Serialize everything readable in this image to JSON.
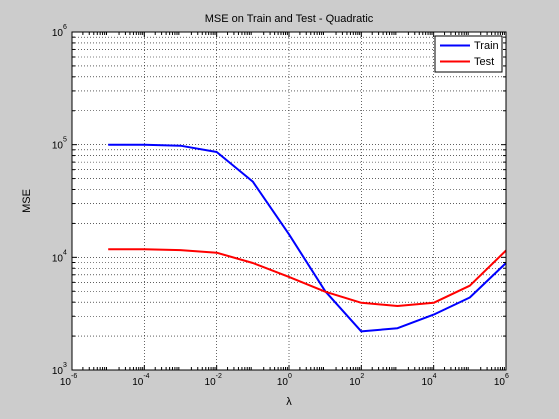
{
  "chart_data": {
    "type": "line",
    "title": "MSE on Train and Test - Quadratic",
    "xlabel": "λ",
    "ylabel": "MSE",
    "xscale": "log",
    "yscale": "log",
    "xlim": [
      1e-06,
      1000000
    ],
    "ylim": [
      1000,
      1000000
    ],
    "grid": true,
    "legend_position": "top-right",
    "x_ticks": [
      {
        "value": 1e-06,
        "base": "10",
        "exp": "-6"
      },
      {
        "value": 0.0001,
        "base": "10",
        "exp": "-4"
      },
      {
        "value": 0.01,
        "base": "10",
        "exp": "-2"
      },
      {
        "value": 1,
        "base": "10",
        "exp": "0"
      },
      {
        "value": 100,
        "base": "10",
        "exp": "2"
      },
      {
        "value": 10000,
        "base": "10",
        "exp": "4"
      },
      {
        "value": 1000000,
        "base": "10",
        "exp": "6"
      }
    ],
    "y_ticks": [
      {
        "value": 1000,
        "base": "10",
        "exp": "3"
      },
      {
        "value": 10000,
        "base": "10",
        "exp": "4"
      },
      {
        "value": 100000,
        "base": "10",
        "exp": "5"
      },
      {
        "value": 1000000,
        "base": "10",
        "exp": "6"
      }
    ],
    "x": [
      0.0001,
      0.00025,
      0.001,
      0.003,
      0.01,
      0.1,
      1,
      10,
      100,
      1000,
      10000,
      100000,
      1000000
    ],
    "series": [
      {
        "name": "Train",
        "color": "#0000ff",
        "x": [
          1e-05,
          0.0001,
          0.001,
          0.01,
          0.1,
          1,
          10,
          100,
          1000,
          10000,
          100000,
          1000000
        ],
        "values": [
          100000,
          100000,
          98000,
          86000,
          47000,
          16000,
          5000,
          2200,
          2350,
          3100,
          4400,
          8900
        ]
      },
      {
        "name": "Test",
        "color": "#ff0000",
        "x": [
          1e-05,
          0.0001,
          0.001,
          0.01,
          0.1,
          1,
          10,
          100,
          1000,
          10000,
          100000,
          1000000
        ],
        "values": [
          11800,
          11800,
          11600,
          11000,
          8900,
          6700,
          4950,
          3950,
          3700,
          3950,
          5600,
          11500
        ]
      }
    ]
  }
}
